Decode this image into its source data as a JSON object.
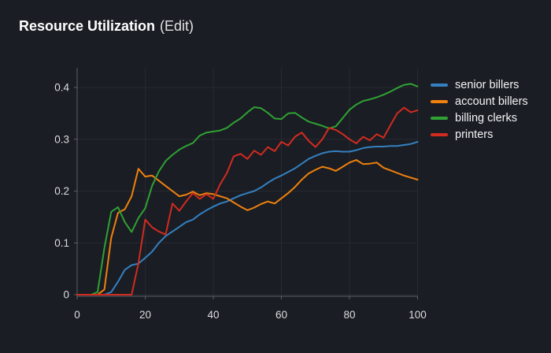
{
  "header": {
    "title": "Resource Utilization",
    "edit_suffix": "(Edit)"
  },
  "colors": {
    "background": "#1a1d23",
    "grid": "#262a31",
    "axis": "#5c6066",
    "tick_text": "#dcdde0",
    "title_text": "#ffffff",
    "legend_text": "#f2f3f5"
  },
  "chart_data": {
    "type": "line",
    "title": "Resource Utilization",
    "xlabel": "",
    "ylabel": "",
    "xlim": [
      0,
      100
    ],
    "ylim": [
      0,
      0.4
    ],
    "grid": true,
    "legend_position": "right",
    "x_ticks": [
      0,
      20,
      40,
      60,
      80,
      100
    ],
    "x_tick_labels": [
      "0",
      "20",
      "40",
      "60",
      "80",
      "100"
    ],
    "y_ticks": [
      0,
      0.1,
      0.2,
      0.3,
      0.4
    ],
    "y_tick_labels": [
      "0",
      "0.1",
      "0.2",
      "0.3",
      "0.4"
    ],
    "x": [
      0,
      2,
      4,
      6,
      8,
      10,
      12,
      14,
      16,
      18,
      20,
      22,
      24,
      26,
      28,
      30,
      32,
      34,
      36,
      38,
      40,
      42,
      44,
      46,
      48,
      50,
      52,
      54,
      56,
      58,
      60,
      62,
      64,
      66,
      68,
      70,
      72,
      74,
      76,
      78,
      80,
      82,
      84,
      86,
      88,
      90,
      92,
      94,
      96,
      98,
      100
    ],
    "series": [
      {
        "name": "senior billers",
        "color": "#3480c0",
        "values": [
          0,
          0,
          0,
          0,
          0,
          0.005,
          0.025,
          0.048,
          0.057,
          0.06,
          0.071,
          0.083,
          0.1,
          0.113,
          0.122,
          0.131,
          0.14,
          0.145,
          0.155,
          0.163,
          0.17,
          0.176,
          0.18,
          0.186,
          0.192,
          0.196,
          0.2,
          0.207,
          0.216,
          0.224,
          0.23,
          0.237,
          0.244,
          0.253,
          0.262,
          0.268,
          0.273,
          0.276,
          0.277,
          0.276,
          0.276,
          0.279,
          0.283,
          0.285,
          0.286,
          0.286,
          0.287,
          0.287,
          0.289,
          0.291,
          0.295
        ]
      },
      {
        "name": "account billers",
        "color": "#f0810d",
        "values": [
          0,
          0,
          0,
          0,
          0.01,
          0.11,
          0.158,
          0.165,
          0.19,
          0.243,
          0.228,
          0.23,
          0.22,
          0.21,
          0.2,
          0.19,
          0.193,
          0.199,
          0.192,
          0.196,
          0.194,
          0.19,
          0.186,
          0.178,
          0.17,
          0.163,
          0.168,
          0.175,
          0.18,
          0.176,
          0.186,
          0.196,
          0.208,
          0.222,
          0.234,
          0.241,
          0.247,
          0.244,
          0.239,
          0.247,
          0.255,
          0.26,
          0.252,
          0.253,
          0.255,
          0.245,
          0.24,
          0.235,
          0.23,
          0.226,
          0.222
        ]
      },
      {
        "name": "billing clerks",
        "color": "#30a134",
        "values": [
          0,
          0,
          0,
          0.005,
          0.09,
          0.16,
          0.169,
          0.14,
          0.121,
          0.148,
          0.167,
          0.21,
          0.238,
          0.258,
          0.27,
          0.28,
          0.287,
          0.293,
          0.307,
          0.313,
          0.315,
          0.317,
          0.322,
          0.332,
          0.34,
          0.352,
          0.362,
          0.36,
          0.351,
          0.34,
          0.339,
          0.35,
          0.351,
          0.342,
          0.334,
          0.33,
          0.326,
          0.321,
          0.325,
          0.341,
          0.357,
          0.367,
          0.374,
          0.377,
          0.381,
          0.386,
          0.392,
          0.399,
          0.405,
          0.407,
          0.402
        ]
      },
      {
        "name": "printers",
        "color": "#d22b20",
        "values": [
          0,
          0,
          0,
          0,
          0,
          0,
          0,
          0,
          0,
          0.06,
          0.145,
          0.13,
          0.122,
          0.116,
          0.176,
          0.162,
          0.18,
          0.196,
          0.185,
          0.194,
          0.185,
          0.213,
          0.235,
          0.267,
          0.272,
          0.262,
          0.278,
          0.27,
          0.285,
          0.277,
          0.295,
          0.288,
          0.305,
          0.313,
          0.297,
          0.285,
          0.3,
          0.322,
          0.318,
          0.31,
          0.3,
          0.292,
          0.305,
          0.298,
          0.31,
          0.303,
          0.327,
          0.35,
          0.361,
          0.352,
          0.356
        ]
      }
    ]
  }
}
